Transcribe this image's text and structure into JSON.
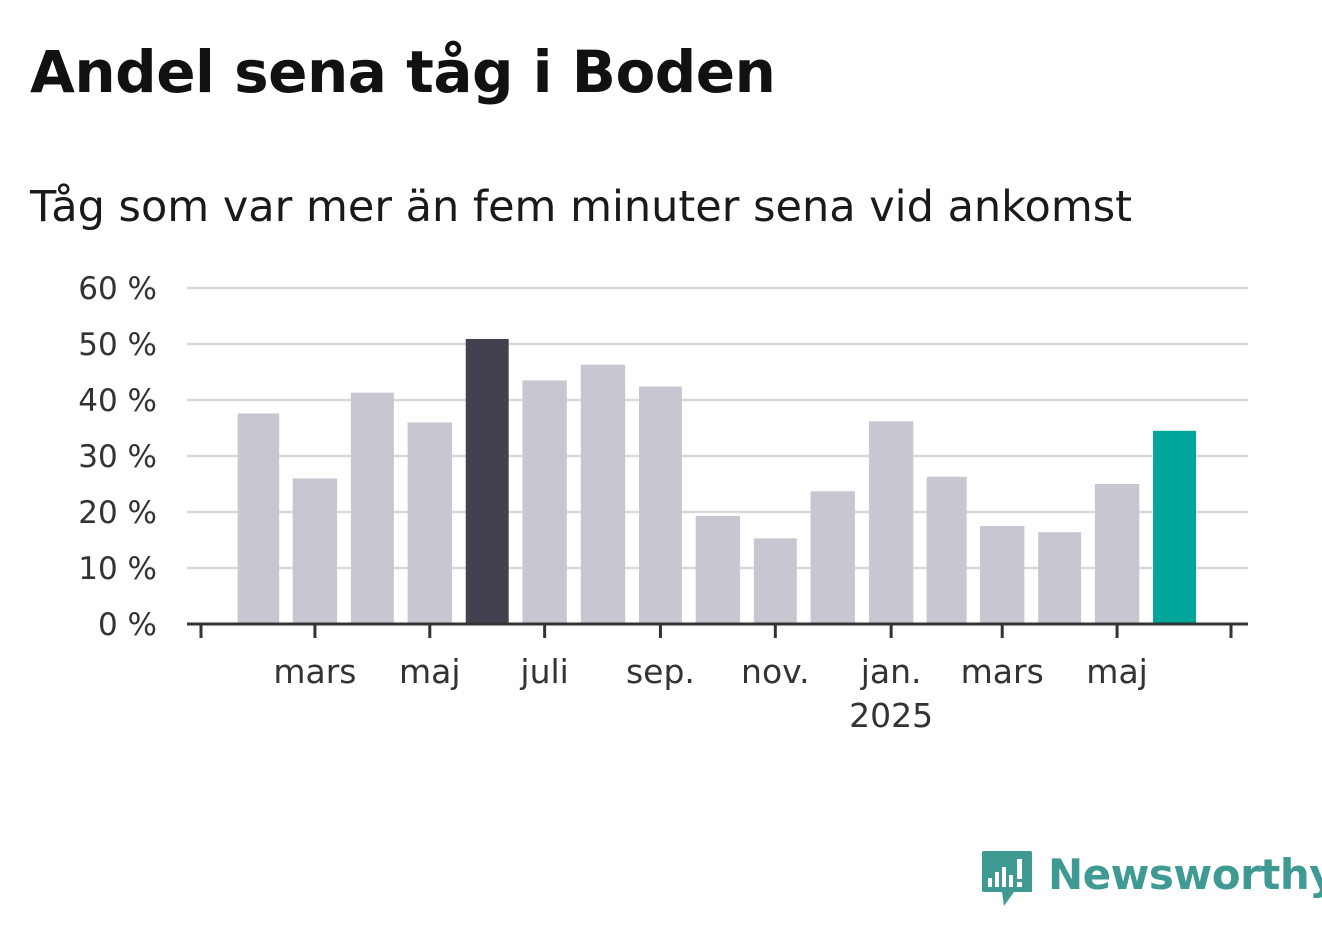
{
  "title": "Andel sena tåg i Boden",
  "subtitle": "Tåg som var mer än fem minuter sena vid ankomst",
  "brand": {
    "name": "Newsworthy",
    "icon": "newsworthy-logo-icon",
    "color": "#3f9a94"
  },
  "colors": {
    "default_bar": "#c8c7d1",
    "highlight_dark": "#43414f",
    "highlight_latest": "#00a69a",
    "grid": "#d9d9dd",
    "axis": "#333333"
  },
  "chart_data": {
    "type": "bar",
    "title": "Andel sena tåg i Boden",
    "subtitle": "Tåg som var mer än fem minuter sena vid ankomst",
    "ylim": [
      0,
      60
    ],
    "yticks": [
      0,
      10,
      20,
      30,
      40,
      50,
      60
    ],
    "ytick_labels": [
      "0 %",
      "10 %",
      "20 %",
      "30 %",
      "40 %",
      "50 %",
      "60 %"
    ],
    "grid": true,
    "categories": [
      "2024-02",
      "2024-03",
      "2024-04",
      "2024-05",
      "2024-06",
      "2024-07",
      "2024-08",
      "2024-09",
      "2024-10",
      "2024-11",
      "2024-12",
      "2025-01",
      "2025-02",
      "2025-03",
      "2025-04",
      "2025-05",
      "2025-06"
    ],
    "values": [
      37.6,
      26.0,
      41.3,
      36.0,
      50.9,
      43.5,
      46.3,
      42.4,
      19.3,
      15.3,
      23.7,
      36.2,
      26.3,
      17.5,
      16.4,
      25.0,
      34.5
    ],
    "highlight": {
      "2024-06": "dark",
      "2025-06": "latest"
    },
    "x_tick_labels": [
      {
        "label": "mars",
        "month": "2024-03"
      },
      {
        "label": "maj",
        "month": "2024-05"
      },
      {
        "label": "juli",
        "month": "2024-07"
      },
      {
        "label": "sep.",
        "month": "2024-09"
      },
      {
        "label": "nov.",
        "month": "2024-11"
      },
      {
        "label": "jan.",
        "sub": "2025",
        "month": "2025-01"
      },
      {
        "label": "mars",
        "month": "2025-03"
      },
      {
        "label": "maj",
        "month": "2025-05"
      }
    ],
    "x_range": [
      "2024-01-16",
      "2025-07-16"
    ]
  }
}
